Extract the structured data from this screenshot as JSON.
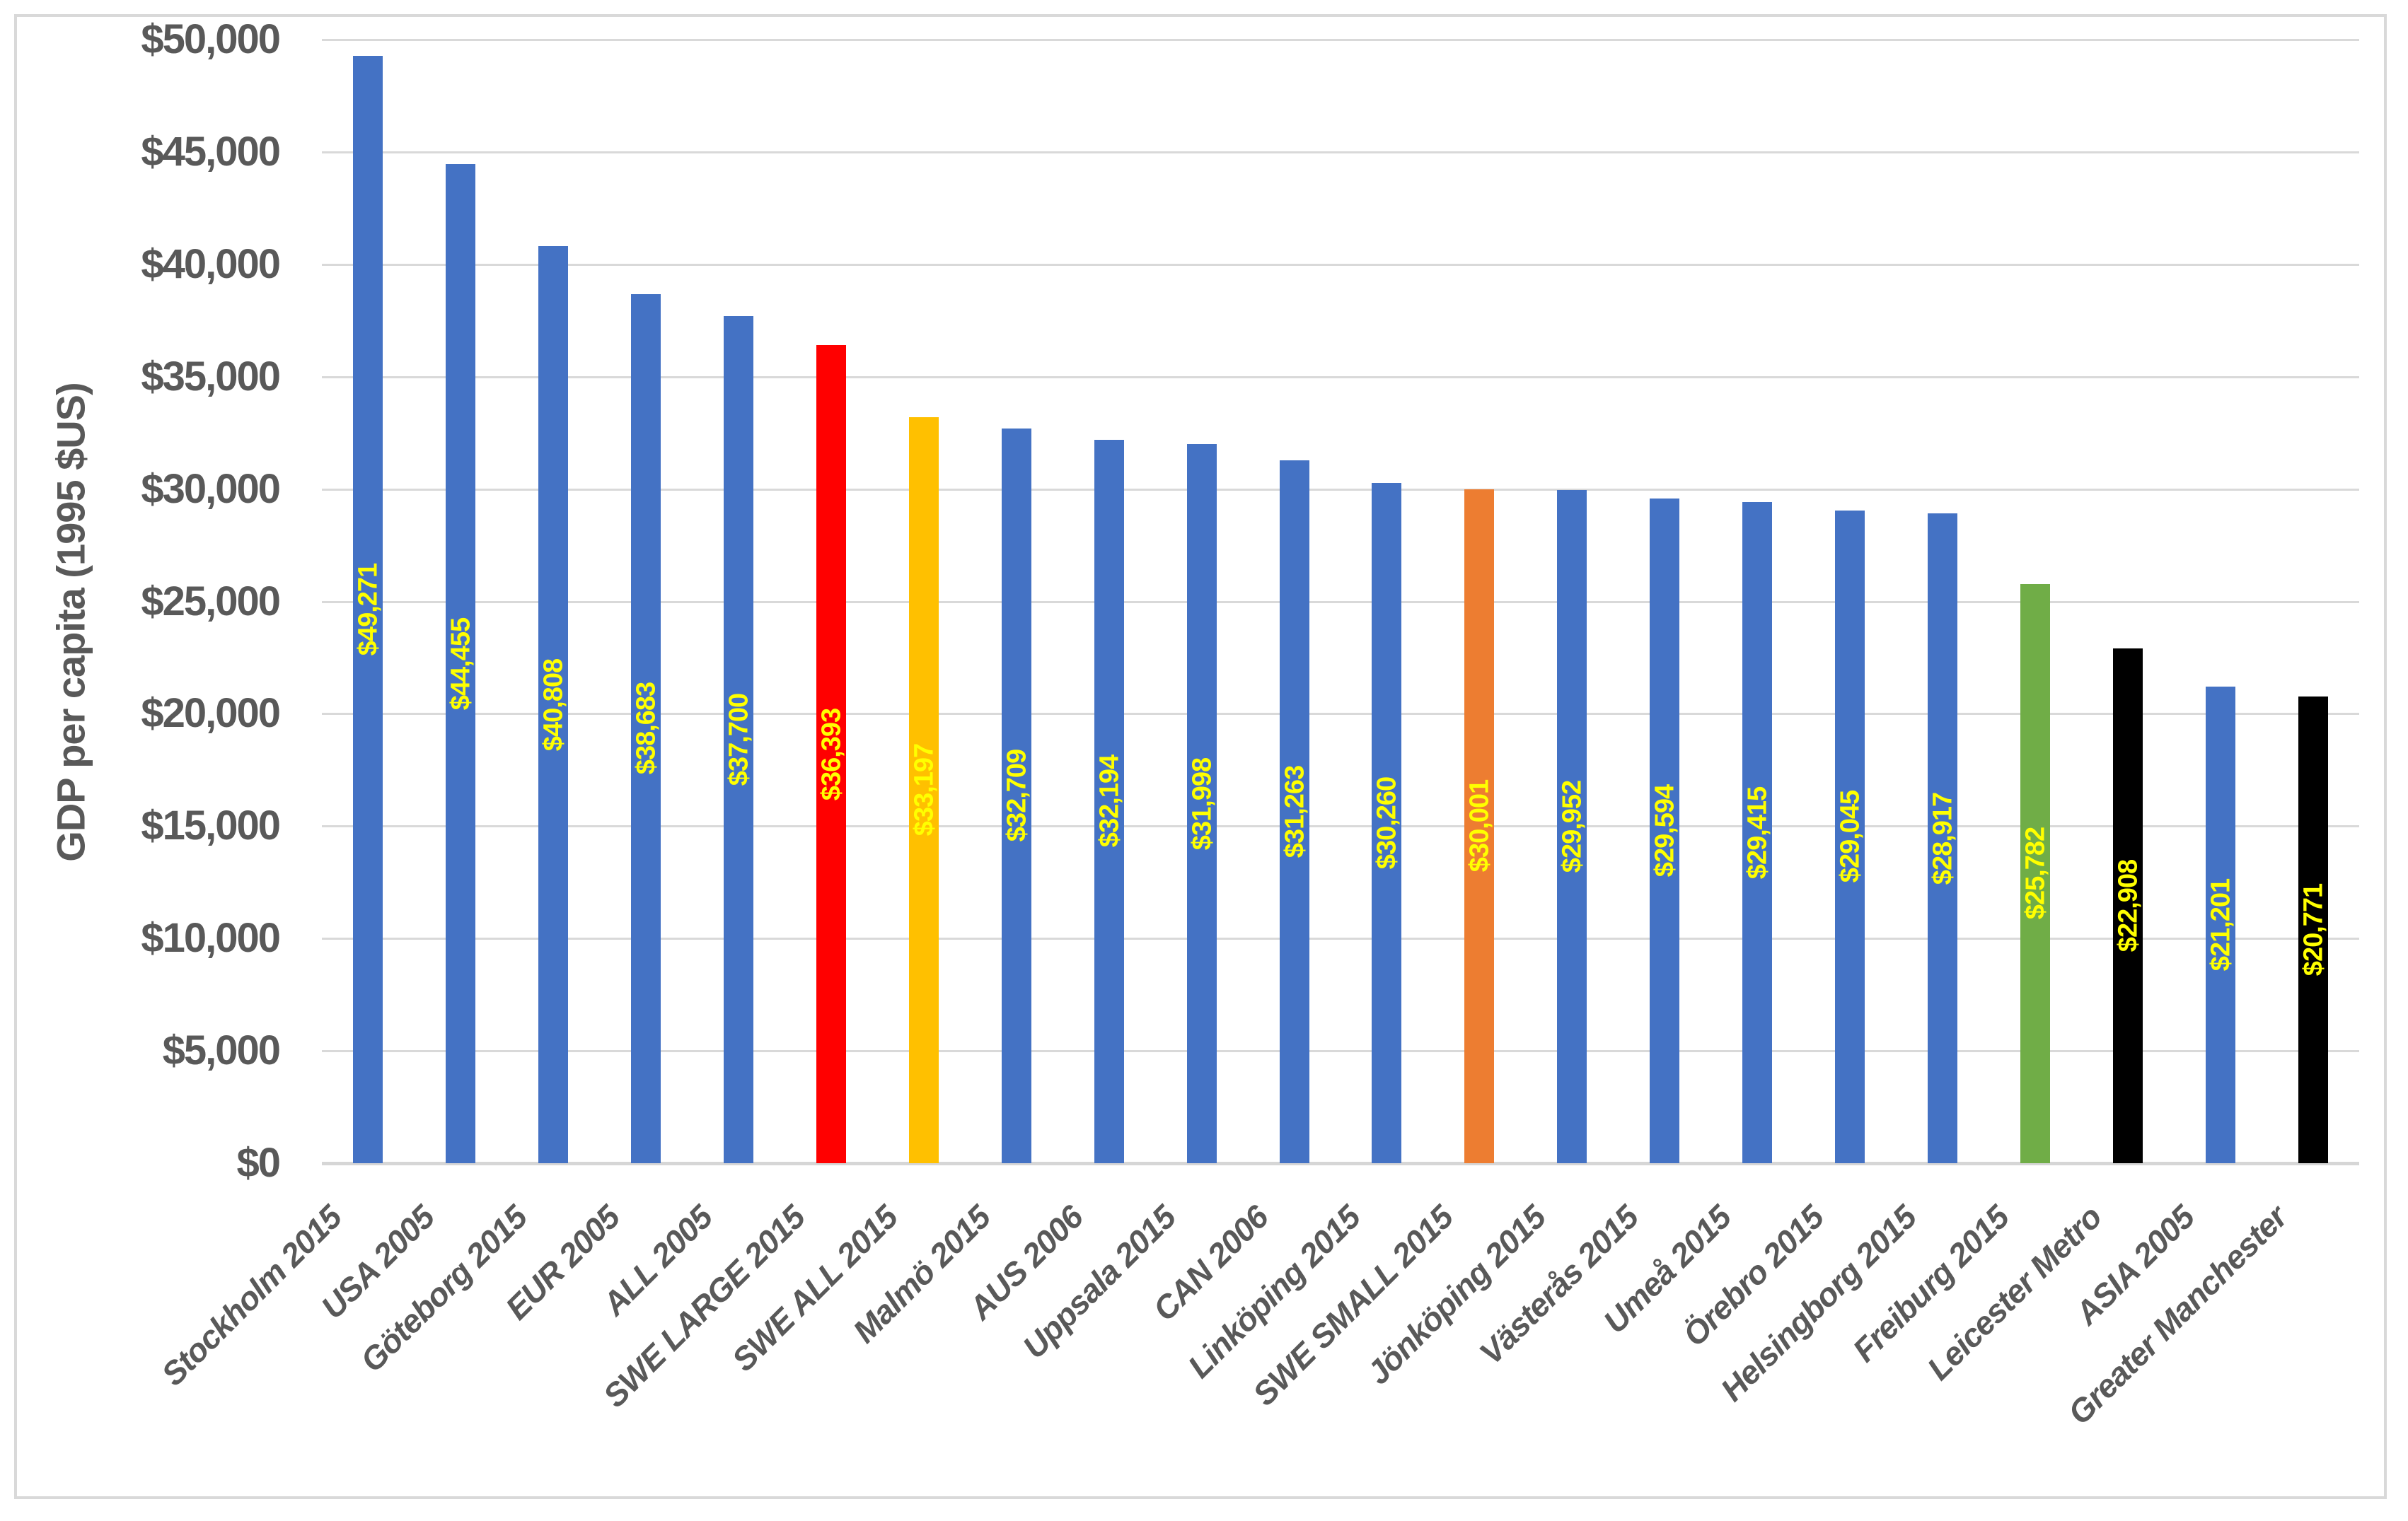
{
  "chart_data": {
    "type": "bar",
    "title": "",
    "xlabel": "",
    "ylabel": "GDP per capita (1995 $US)",
    "ylim": [
      0,
      50000
    ],
    "ytick_step": 5000,
    "ytick_labels": [
      "$0",
      "$5,000",
      "$10,000",
      "$15,000",
      "$20,000",
      "$25,000",
      "$30,000",
      "$35,000",
      "$40,000",
      "$45,000",
      "$50,000"
    ],
    "grid": true,
    "legend": "none",
    "bar_label_color": "#FFFF00",
    "axis_text_color": "#595959",
    "gridline_color": "#D9D9D9",
    "palette": {
      "default": "#4472C4",
      "highlight_red": "#FF0000",
      "highlight_gold": "#FFC000",
      "highlight_orange": "#ED7D31",
      "highlight_green": "#70AD47",
      "highlight_black": "#000000"
    },
    "bars": [
      {
        "category": "Stockholm 2015",
        "value": 49271,
        "label": "$49,271",
        "color": "#4472C4"
      },
      {
        "category": "USA 2005",
        "value": 44455,
        "label": "$44,455",
        "color": "#4472C4"
      },
      {
        "category": "Göteborg 2015",
        "value": 40808,
        "label": "$40,808",
        "color": "#4472C4"
      },
      {
        "category": "EUR 2005",
        "value": 38683,
        "label": "$38,683",
        "color": "#4472C4"
      },
      {
        "category": "ALL 2005",
        "value": 37700,
        "label": "$37,700",
        "color": "#4472C4"
      },
      {
        "category": "SWE LARGE 2015",
        "value": 36393,
        "label": "$36,393",
        "color": "#FF0000"
      },
      {
        "category": "SWE ALL 2015",
        "value": 33197,
        "label": "$33,197",
        "color": "#FFC000"
      },
      {
        "category": "Malmö 2015",
        "value": 32709,
        "label": "$32,709",
        "color": "#4472C4"
      },
      {
        "category": "AUS 2006",
        "value": 32194,
        "label": "$32,194",
        "color": "#4472C4"
      },
      {
        "category": "Uppsala 2015",
        "value": 31998,
        "label": "$31,998",
        "color": "#4472C4"
      },
      {
        "category": "CAN 2006",
        "value": 31263,
        "label": "$31,263",
        "color": "#4472C4"
      },
      {
        "category": "Linköping 2015",
        "value": 30260,
        "label": "$30,260",
        "color": "#4472C4"
      },
      {
        "category": "SWE SMALL 2015",
        "value": 30001,
        "label": "$30,001",
        "color": "#ED7D31"
      },
      {
        "category": "Jönköping 2015",
        "value": 29952,
        "label": "$29,952",
        "color": "#4472C4"
      },
      {
        "category": "Västerås 2015",
        "value": 29594,
        "label": "$29,594",
        "color": "#4472C4"
      },
      {
        "category": "Umeå 2015",
        "value": 29415,
        "label": "$29,415",
        "color": "#4472C4"
      },
      {
        "category": "Örebro 2015",
        "value": 29045,
        "label": "$29,045",
        "color": "#4472C4"
      },
      {
        "category": "Helsingborg 2015",
        "value": 28917,
        "label": "$28,917",
        "color": "#4472C4"
      },
      {
        "category": "Freiburg 2015",
        "value": 25782,
        "label": "$25,782",
        "color": "#70AD47"
      },
      {
        "category": "Leicester Metro",
        "value": 22908,
        "label": "$22,908",
        "color": "#000000"
      },
      {
        "category": "ASIA 2005",
        "value": 21201,
        "label": "$21,201",
        "color": "#4472C4"
      },
      {
        "category": "Greater Manchester",
        "value": 20771,
        "label": "$20,771",
        "color": "#000000"
      }
    ]
  }
}
